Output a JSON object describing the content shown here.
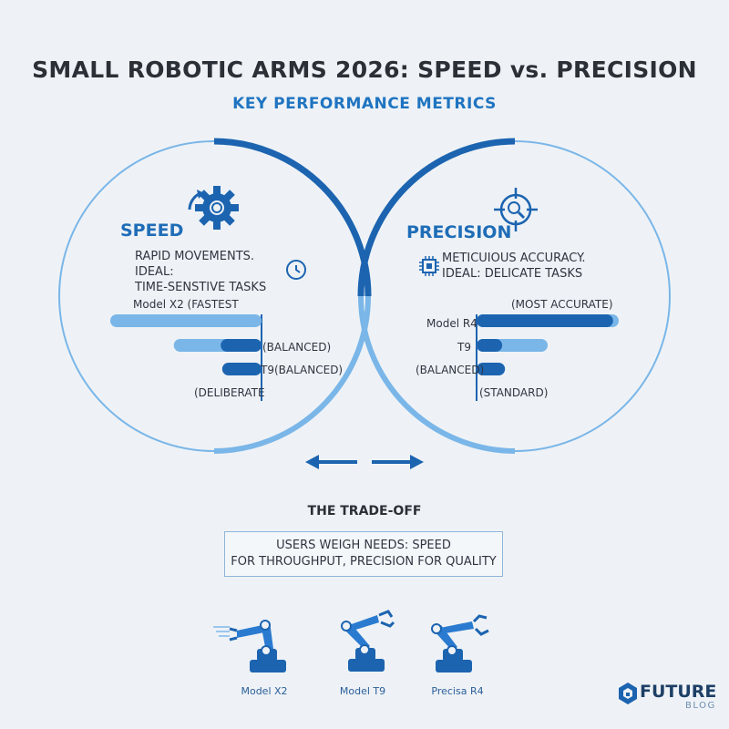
{
  "title": "SMALL ROBOTIC ARMS 2026: SPEED vs. PRECISION",
  "subtitle": "KEY PERFORMANCE METRICS",
  "speed": {
    "heading": "SPEED",
    "description": [
      "RAPID MOVEMENTS. IDEAL:",
      "TIME-SENSTIVE TASKS"
    ],
    "icon": "gear-icon",
    "secondary_icon": "clock-icon",
    "bar_labels": [
      "Model X2 (FASTEST",
      "(BALANCED)",
      "T9(BALANCED)",
      "(DELIBERATE"
    ],
    "bars": [
      {
        "light": 1.0,
        "dark": 0.0
      },
      {
        "light": 0.58,
        "dark": 0.27
      },
      {
        "light": 0.0,
        "dark": 0.26
      },
      {
        "light": 0.0,
        "dark": 0.0
      }
    ]
  },
  "precision": {
    "heading": "PRECISION",
    "description": [
      "METICUIOUS ACCURACY.",
      "IDEAL: DELICATE TASKS"
    ],
    "icon": "target-icon",
    "secondary_icon": "chip-icon",
    "bar_labels": [
      "(MOST ACCURATE)",
      "Model R4",
      "T9",
      "(BALANCED)",
      "(STANDARD)"
    ],
    "bars": [
      {
        "dark": 0.96,
        "light": 1.0
      },
      {
        "dark": 0.18,
        "light": 0.5
      },
      {
        "dark": 0.2,
        "light": 0.0
      },
      {
        "dark": 0.0,
        "light": 0.0
      }
    ]
  },
  "tradeoff": {
    "heading": "THE TRADE-OFF",
    "lines": [
      "USERS WEIGH NEEDS: SPEED",
      "FOR THROUGHPUT, PRECISION FOR QUALITY"
    ]
  },
  "models": [
    "Model X2",
    "Model T9",
    "Precisa R4"
  ],
  "logo": {
    "name": "FUTURE",
    "sub": "BLOG"
  },
  "colors": {
    "accent": "#1f6db7",
    "light": "#7ab6e8",
    "dark": "#1c64b0"
  }
}
